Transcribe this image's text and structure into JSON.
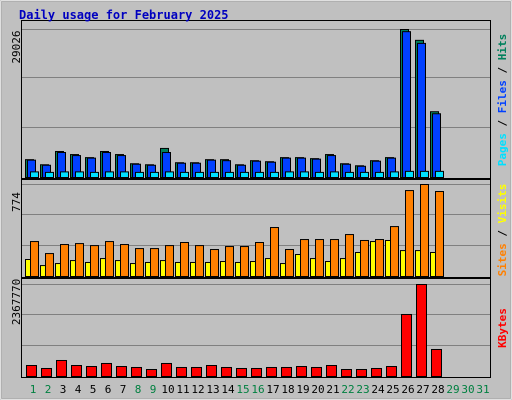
{
  "chart_data": [
    {
      "type": "bar",
      "title": "Daily usage for February 2025",
      "ylim": [
        0,
        29026
      ],
      "yticks": [
        29026
      ],
      "legend_separator": "/",
      "series": [
        {
          "name": "Hits",
          "color": "#00805c",
          "values": [
            3500,
            2500,
            5100,
            4500,
            3900,
            5100,
            4500,
            2700,
            2500,
            5700,
            2900,
            2900,
            3500,
            3500,
            2500,
            3300,
            3100,
            3900,
            3900,
            3700,
            4500,
            2700,
            2300,
            3300,
            3900,
            29026,
            26900,
            12900,
            null,
            null,
            null
          ]
        },
        {
          "name": "Files",
          "color": "#0040ff",
          "values": [
            3400,
            2400,
            4900,
            4300,
            3800,
            4900,
            4300,
            2600,
            2400,
            4900,
            2800,
            2800,
            3400,
            3300,
            2400,
            3200,
            3000,
            3800,
            3800,
            3600,
            4300,
            2600,
            2200,
            3200,
            3800,
            28600,
            26300,
            12500,
            null,
            null,
            null
          ]
        },
        {
          "name": "Pages",
          "color": "#00e0ff",
          "values": [
            1100,
            1000,
            1100,
            1100,
            1000,
            1100,
            1100,
            1000,
            1000,
            1100,
            1000,
            1000,
            1000,
            1000,
            1000,
            1000,
            1000,
            1100,
            1100,
            1000,
            1100,
            1000,
            1000,
            1000,
            1100,
            1200,
            1200,
            1200,
            null,
            null,
            null
          ]
        }
      ]
    },
    {
      "type": "bar",
      "ylim": [
        0,
        774
      ],
      "yticks": [
        774
      ],
      "legend_separator": "/",
      "series": [
        {
          "name": "Visits",
          "color": "#ffff00",
          "values": [
            143,
            92,
            109,
            134,
            118,
            151,
            134,
            109,
            118,
            134,
            118,
            118,
            118,
            126,
            118,
            126,
            151,
            109,
            185,
            151,
            126,
            151,
            202,
            294,
            303,
            218,
            218,
            202,
            null,
            null,
            null
          ]
        },
        {
          "name": "Sites",
          "color": "#ff8000",
          "values": [
            294,
            193,
            269,
            277,
            260,
            294,
            269,
            235,
            235,
            260,
            286,
            260,
            227,
            252,
            252,
            286,
            412,
            227,
            311,
            311,
            311,
            353,
            303,
            311,
            420,
            723,
            774,
            715,
            null,
            null,
            null
          ]
        }
      ]
    },
    {
      "type": "bar",
      "ylim": [
        0,
        2367770
      ],
      "yticks": [
        2367770
      ],
      "categories": [
        "1",
        "2",
        "3",
        "4",
        "5",
        "6",
        "7",
        "8",
        "9",
        "10",
        "11",
        "12",
        "13",
        "14",
        "15",
        "16",
        "17",
        "18",
        "19",
        "20",
        "21",
        "22",
        "23",
        "24",
        "25",
        "26",
        "27",
        "28",
        "29",
        "30",
        "31"
      ],
      "category_colors": [
        "#008040",
        "#008040",
        "#000000",
        "#000000",
        "#000000",
        "#000000",
        "#000000",
        "#008040",
        "#008040",
        "#000000",
        "#000000",
        "#000000",
        "#000000",
        "#000000",
        "#008040",
        "#008040",
        "#000000",
        "#000000",
        "#000000",
        "#000000",
        "#000000",
        "#008040",
        "#008040",
        "#000000",
        "#000000",
        "#000000",
        "#000000",
        "#000000",
        "#008040",
        "#008040",
        "#008040"
      ],
      "series": [
        {
          "name": "KBytes",
          "color": "#ff0000",
          "values": [
            283000,
            206000,
            412000,
            283000,
            257000,
            335000,
            257000,
            232000,
            180000,
            335000,
            232000,
            232000,
            283000,
            232000,
            206000,
            206000,
            232000,
            232000,
            257000,
            232000,
            283000,
            180000,
            180000,
            206000,
            257000,
            1596000,
            2367770,
            695000,
            null,
            null,
            null
          ]
        }
      ]
    }
  ]
}
